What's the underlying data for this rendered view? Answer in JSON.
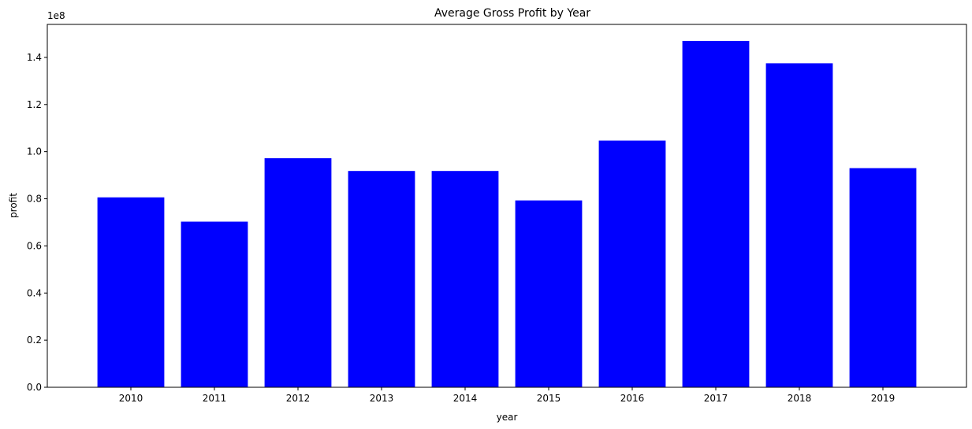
{
  "chart_data": {
    "type": "bar",
    "title": "Average Gross Profit by Year",
    "xlabel": "year",
    "ylabel": "profit",
    "y_offset_label": "1e8",
    "y_scale": 100000000,
    "categories": [
      "2010",
      "2011",
      "2012",
      "2013",
      "2014",
      "2015",
      "2016",
      "2017",
      "2018",
      "2019"
    ],
    "values": [
      80600000,
      70300000,
      97200000,
      91800000,
      91800000,
      79300000,
      104700000,
      147000000,
      137500000,
      93000000
    ],
    "ylim": [
      0,
      154000000
    ],
    "yticks": [
      0,
      20000000,
      40000000,
      60000000,
      80000000,
      100000000,
      120000000,
      140000000
    ],
    "ytick_labels": [
      "0.0",
      "0.2",
      "0.4",
      "0.6",
      "0.8",
      "1.0",
      "1.2",
      "1.4"
    ],
    "bar_color": "#0000ff",
    "grid": false,
    "legend": "none"
  }
}
